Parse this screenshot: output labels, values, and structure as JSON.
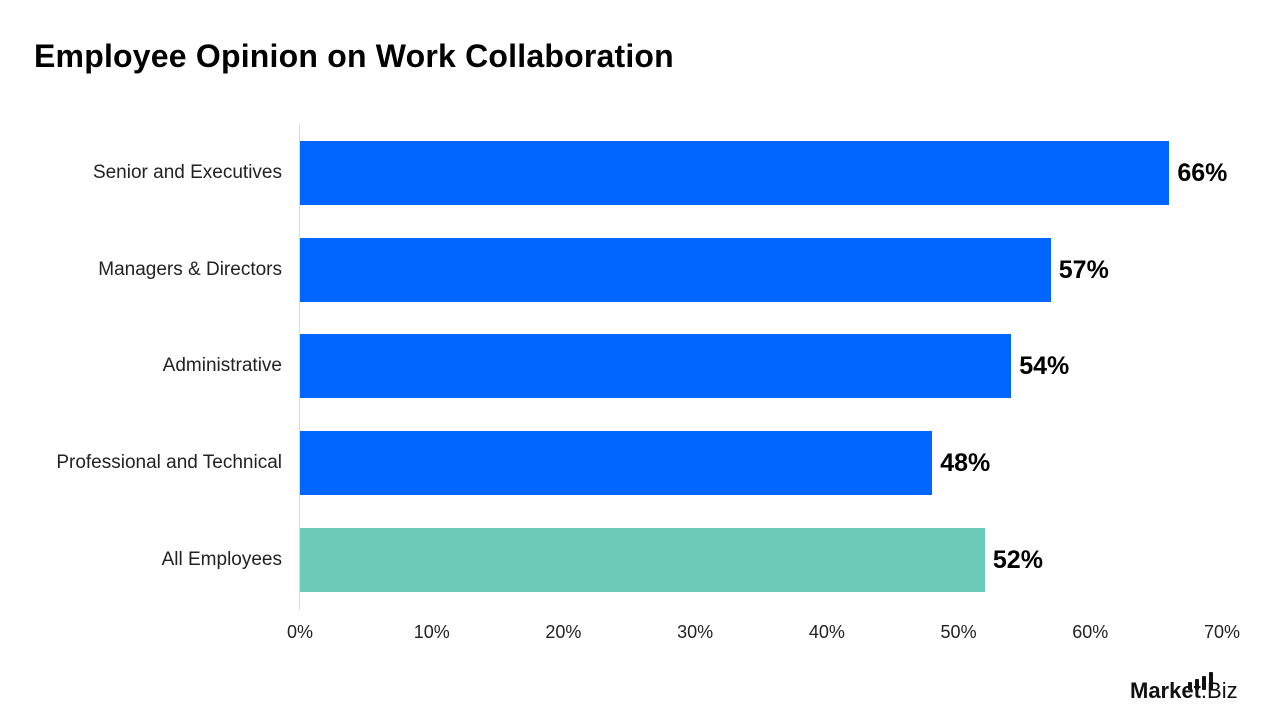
{
  "title": "Employee Opinion on Work Collaboration",
  "chart_data": {
    "type": "bar",
    "orientation": "horizontal",
    "title": "Employee Opinion on Work Collaboration",
    "xlabel": "",
    "ylabel": "",
    "categories": [
      "Senior and Executives",
      "Managers & Directors",
      "Administrative",
      "Professional and Technical",
      "All Employees"
    ],
    "values": [
      66,
      57,
      54,
      48,
      52
    ],
    "value_labels": [
      "66%",
      "57%",
      "54%",
      "48%",
      "52%"
    ],
    "colors": [
      "#0066ff",
      "#0066ff",
      "#0066ff",
      "#0066ff",
      "#6bcbb8"
    ],
    "xlim": [
      0,
      70
    ],
    "x_ticks": [
      "0%",
      "10%",
      "20%",
      "30%",
      "40%",
      "50%",
      "60%",
      "70%"
    ],
    "grid": false,
    "legend": "none"
  },
  "logo": {
    "main": "Market",
    "suffix": ".Biz"
  }
}
